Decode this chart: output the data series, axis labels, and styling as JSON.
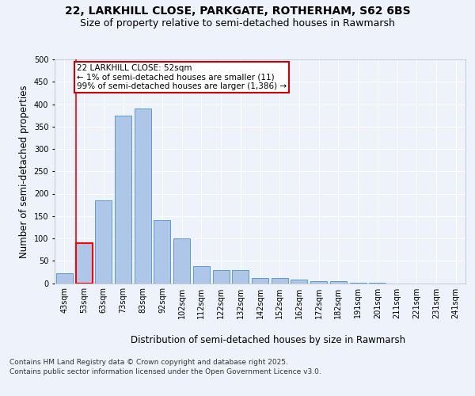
{
  "title_line1": "22, LARKHILL CLOSE, PARKGATE, ROTHERHAM, S62 6BS",
  "title_line2": "Size of property relative to semi-detached houses in Rawmarsh",
  "xlabel": "Distribution of semi-detached houses by size in Rawmarsh",
  "ylabel": "Number of semi-detached properties",
  "categories": [
    "43sqm",
    "53sqm",
    "63sqm",
    "73sqm",
    "83sqm",
    "92sqm",
    "102sqm",
    "112sqm",
    "122sqm",
    "132sqm",
    "142sqm",
    "152sqm",
    "162sqm",
    "172sqm",
    "182sqm",
    "191sqm",
    "201sqm",
    "211sqm",
    "221sqm",
    "231sqm",
    "241sqm"
  ],
  "values": [
    22,
    90,
    185,
    375,
    390,
    140,
    100,
    38,
    30,
    30,
    11,
    11,
    8,
    5,
    4,
    1,
    1,
    0,
    0,
    0,
    0
  ],
  "bar_color": "#aec6e8",
  "bar_edge_color": "#5b9bd5",
  "highlight_bar_index": 1,
  "highlight_edge_color": "#ff0000",
  "annotation_text": "22 LARKHILL CLOSE: 52sqm\n← 1% of semi-detached houses are smaller (11)\n99% of semi-detached houses are larger (1,386) →",
  "annotation_box_edge_color": "#cc0000",
  "ylim": [
    0,
    500
  ],
  "yticks": [
    0,
    50,
    100,
    150,
    200,
    250,
    300,
    350,
    400,
    450,
    500
  ],
  "background_color": "#eef2fa",
  "grid_color": "#ffffff",
  "footer_line1": "Contains HM Land Registry data © Crown copyright and database right 2025.",
  "footer_line2": "Contains public sector information licensed under the Open Government Licence v3.0.",
  "title_fontsize": 10,
  "subtitle_fontsize": 9,
  "axis_label_fontsize": 8.5,
  "tick_fontsize": 7,
  "annotation_fontsize": 7.5,
  "footer_fontsize": 6.5
}
